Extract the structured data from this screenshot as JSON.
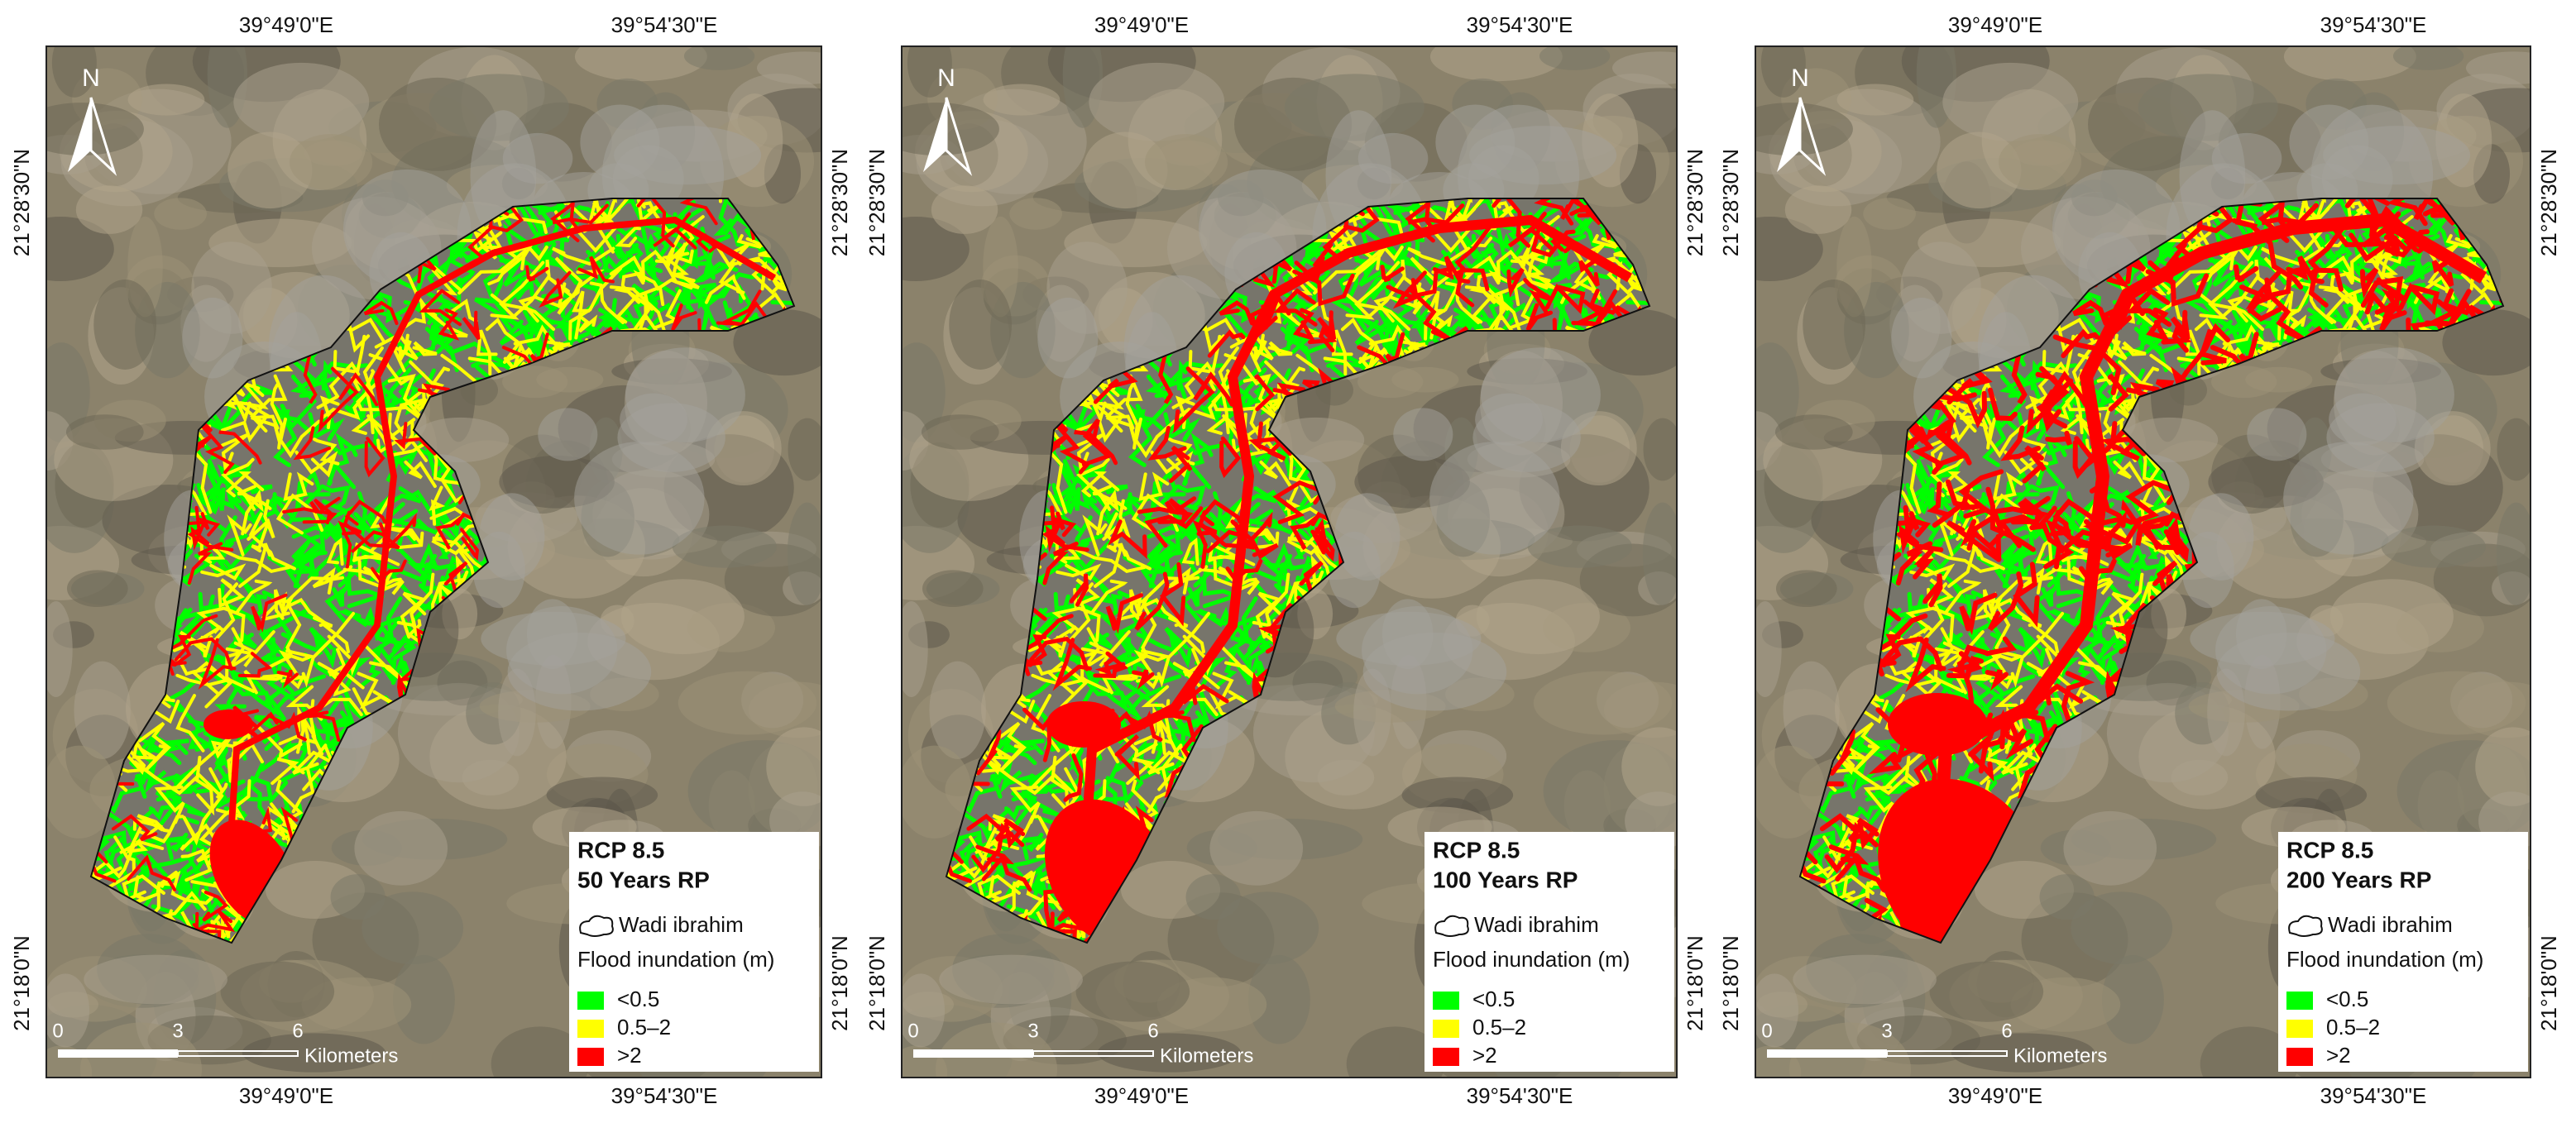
{
  "panels": [
    {
      "scenario": "RCP 8.5",
      "return_period": "50 Years RP"
    },
    {
      "scenario": "RCP 8.5",
      "return_period": "100 Years RP"
    },
    {
      "scenario": "RCP 8.5",
      "return_period": "200 Years RP"
    }
  ],
  "graticule": {
    "lon": [
      "39°49'0\"E",
      "39°54'30\"E"
    ],
    "lat": [
      "21°28'30\"N",
      "21°18'0\"N"
    ]
  },
  "north": "N",
  "legend": {
    "boundary": "Wadi ibrahim",
    "heading": "Flood inundation (m)",
    "classes": [
      {
        "label": "<0.5",
        "color": "#00ff00"
      },
      {
        "label": "0.5–2",
        "color": "#ffff00"
      },
      {
        "label": ">2",
        "color": "#ff0000"
      }
    ]
  },
  "scale_bar": {
    "ticks": [
      0,
      3,
      6
    ],
    "unit": "Kilometers"
  }
}
